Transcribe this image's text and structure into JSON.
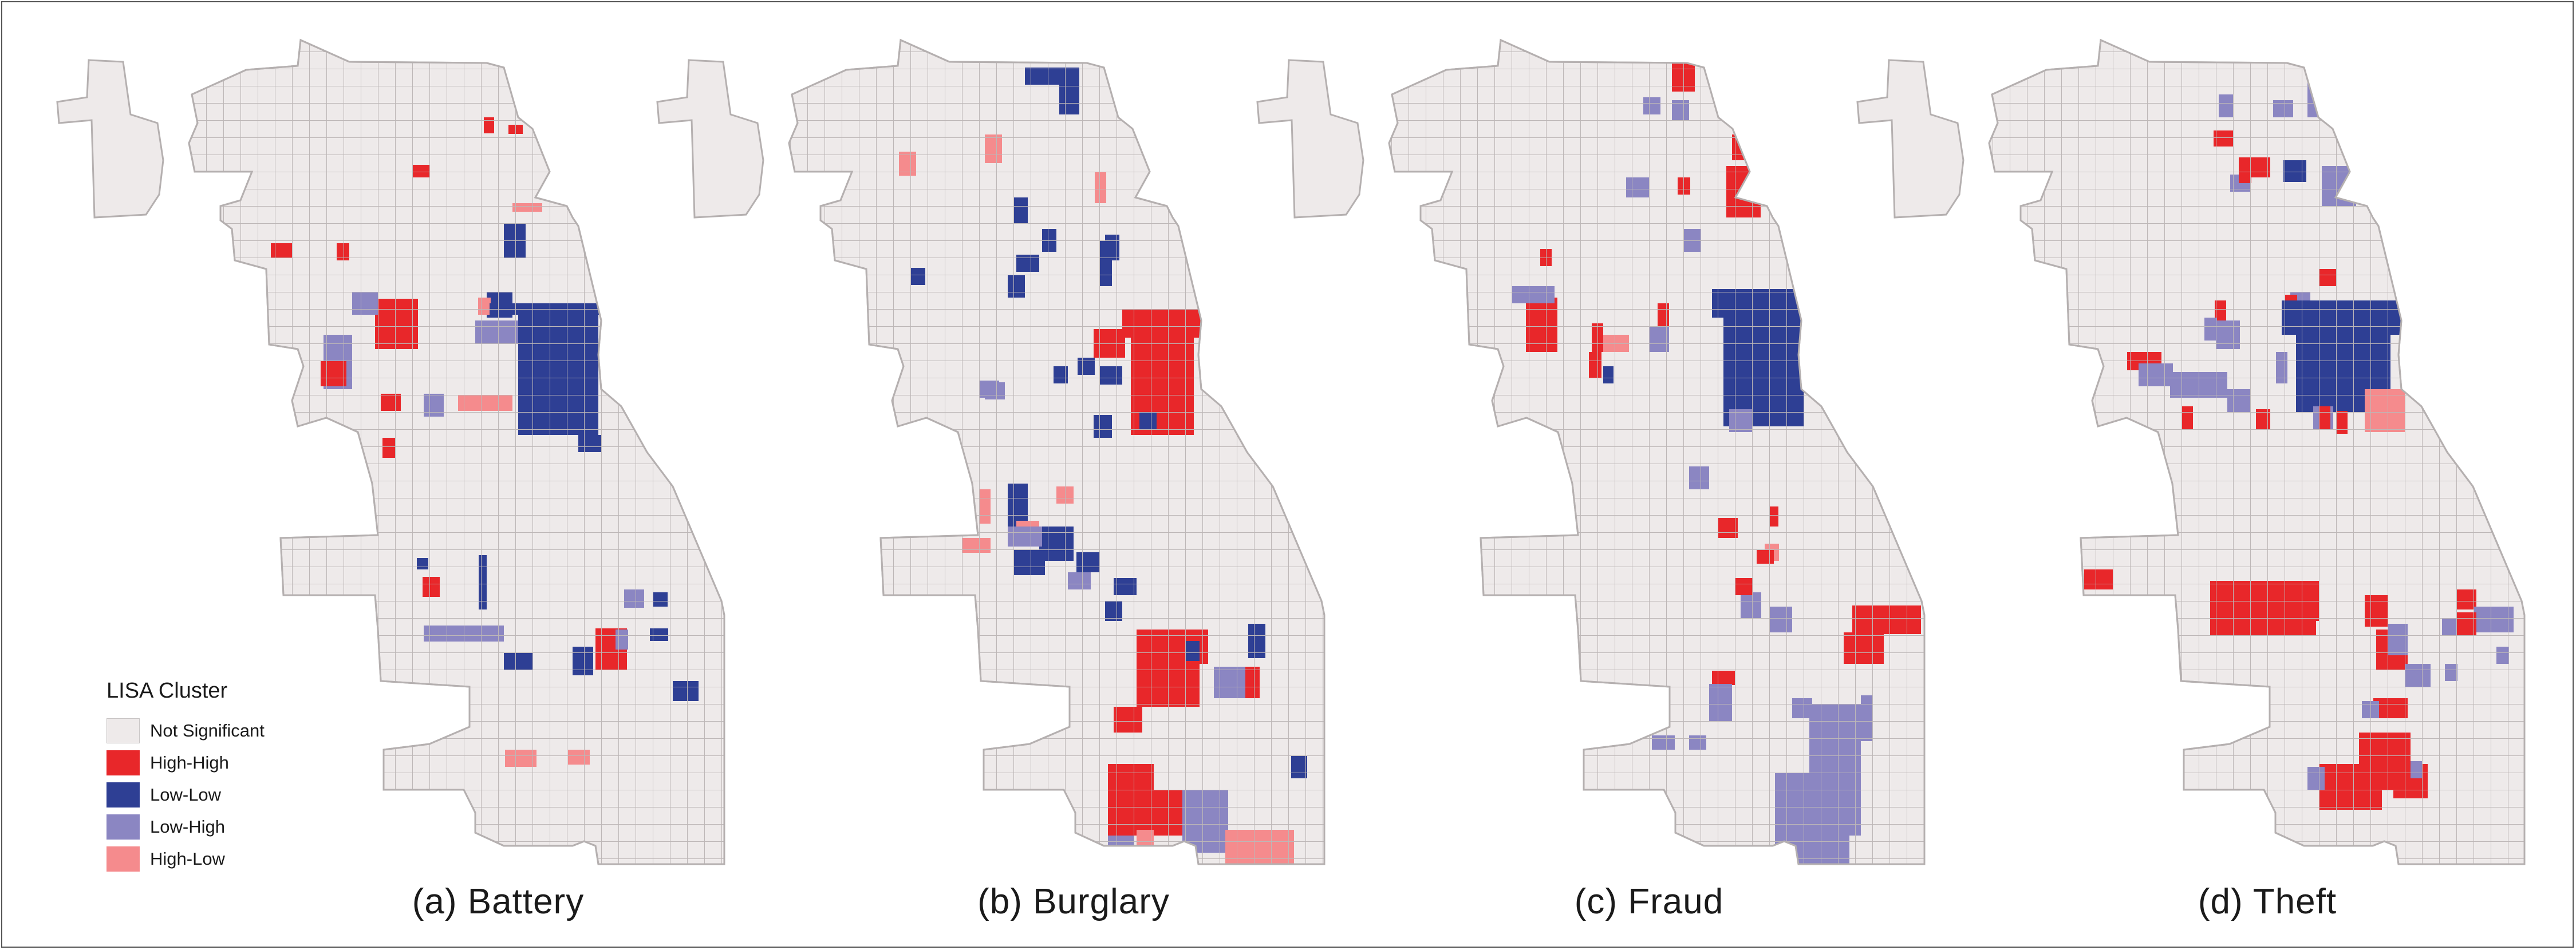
{
  "legend": {
    "title": "LISA Cluster",
    "items": [
      {
        "label": "Not Significant",
        "color": "#eeeaea"
      },
      {
        "label": "High-High",
        "color": "#e8272a"
      },
      {
        "label": "Low-Low",
        "color": "#2e3f94"
      },
      {
        "label": "Low-High",
        "color": "#8b86c2"
      },
      {
        "label": "High-Low",
        "color": "#f58b8d"
      }
    ]
  },
  "panels": [
    {
      "caption": "(a) Battery"
    },
    {
      "caption": "(b) Burglary"
    },
    {
      "caption": "(c) Fraud"
    },
    {
      "caption": "(d) Theft"
    }
  ],
  "colors": {
    "boundary": "#b5b0b0",
    "frame": "#555555"
  }
}
